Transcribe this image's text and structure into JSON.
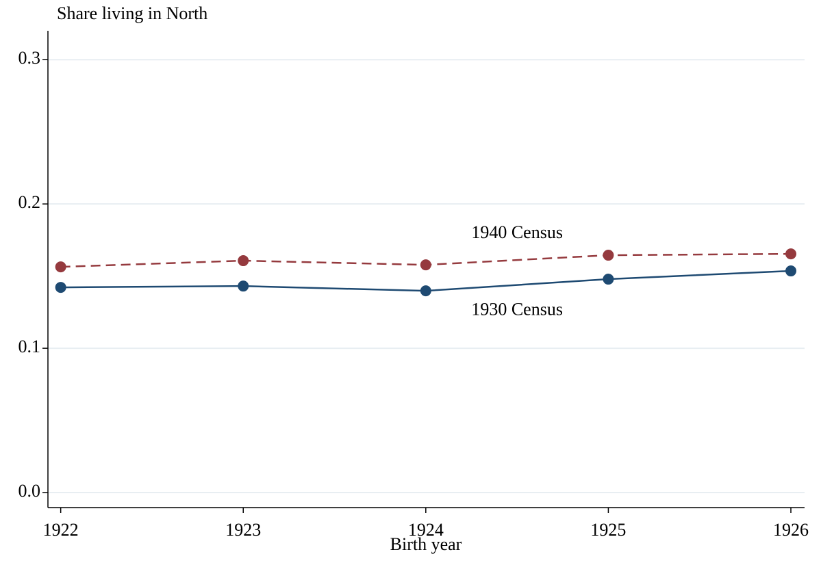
{
  "chart_data": {
    "type": "line",
    "y_label": "Share living in North",
    "x_label": "Birth year",
    "x": [
      1922,
      1923,
      1924,
      1925,
      1926
    ],
    "series": [
      {
        "name": "1940 Census",
        "color": "#953a3e",
        "dash": true,
        "values": [
          0.1564,
          0.1607,
          0.1578,
          0.1645,
          0.1654
        ]
      },
      {
        "name": "1930 Census",
        "color": "#1e4a72",
        "dash": false,
        "values": [
          0.1422,
          0.1431,
          0.1398,
          0.1479,
          0.1536
        ]
      }
    ],
    "xlim": [
      1921.93,
      1926.075
    ],
    "xticks": [
      1922,
      1923,
      1924,
      1925,
      1926
    ],
    "ylim": [
      -0.0104,
      0.32
    ],
    "yticks": [
      {
        "value": 0,
        "label": "0.0"
      },
      0.1,
      0.2,
      0.3
    ],
    "grid": true
  }
}
